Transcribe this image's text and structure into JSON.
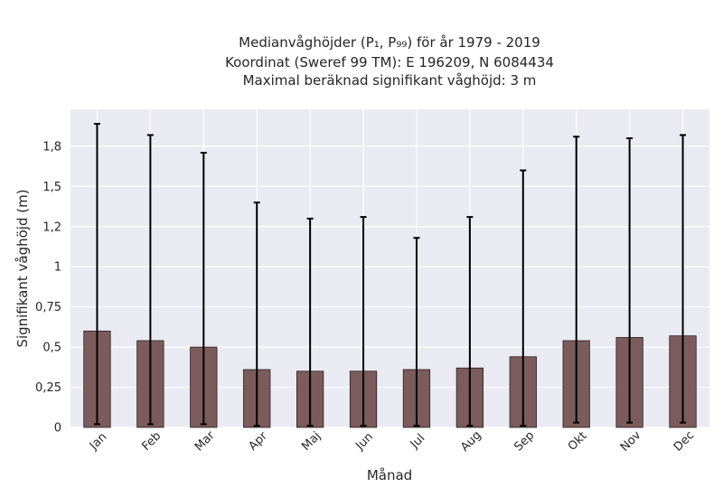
{
  "chart_data": {
    "type": "bar",
    "title_lines": [
      "Medianvåghöjder (P₁, P₉₉) för år 1979 - 2019",
      "Koordinat (Sweref 99 TM): E 196209, N 6084434",
      "Maximal beräknad signifikant våghöjd: 3 m"
    ],
    "xlabel": "Månad",
    "ylabel": "Signifikant våghöjd (m)",
    "categories": [
      "Jan",
      "Feb",
      "Mar",
      "Apr",
      "Maj",
      "Jun",
      "Jul",
      "Aug",
      "Sep",
      "Okt",
      "Nov",
      "Dec"
    ],
    "values": [
      0.6,
      0.54,
      0.5,
      0.36,
      0.35,
      0.35,
      0.36,
      0.37,
      0.44,
      0.54,
      0.56,
      0.57
    ],
    "p1": [
      0.02,
      0.02,
      0.02,
      0.01,
      0.01,
      0.01,
      0.01,
      0.01,
      0.01,
      0.03,
      0.03,
      0.03
    ],
    "p99": [
      1.89,
      1.82,
      1.71,
      1.4,
      1.3,
      1.31,
      1.18,
      1.31,
      1.6,
      1.81,
      1.8,
      1.82
    ],
    "yticks": [
      0,
      0.25,
      0.5,
      0.75,
      1,
      1.25,
      1.5,
      1.75
    ],
    "ytick_labels": [
      "0",
      "0,25",
      "0,5",
      "0,75",
      "1",
      "1,2",
      "1,5",
      "1,8"
    ],
    "ylim": [
      0,
      1.98
    ],
    "grid": true,
    "colors": {
      "bar": "#7b5b5b",
      "bar_edge": "#2a1f1f",
      "errorbar": "#000000",
      "plot_bg": "#eaeaf2",
      "grid": "#ffffff"
    }
  }
}
